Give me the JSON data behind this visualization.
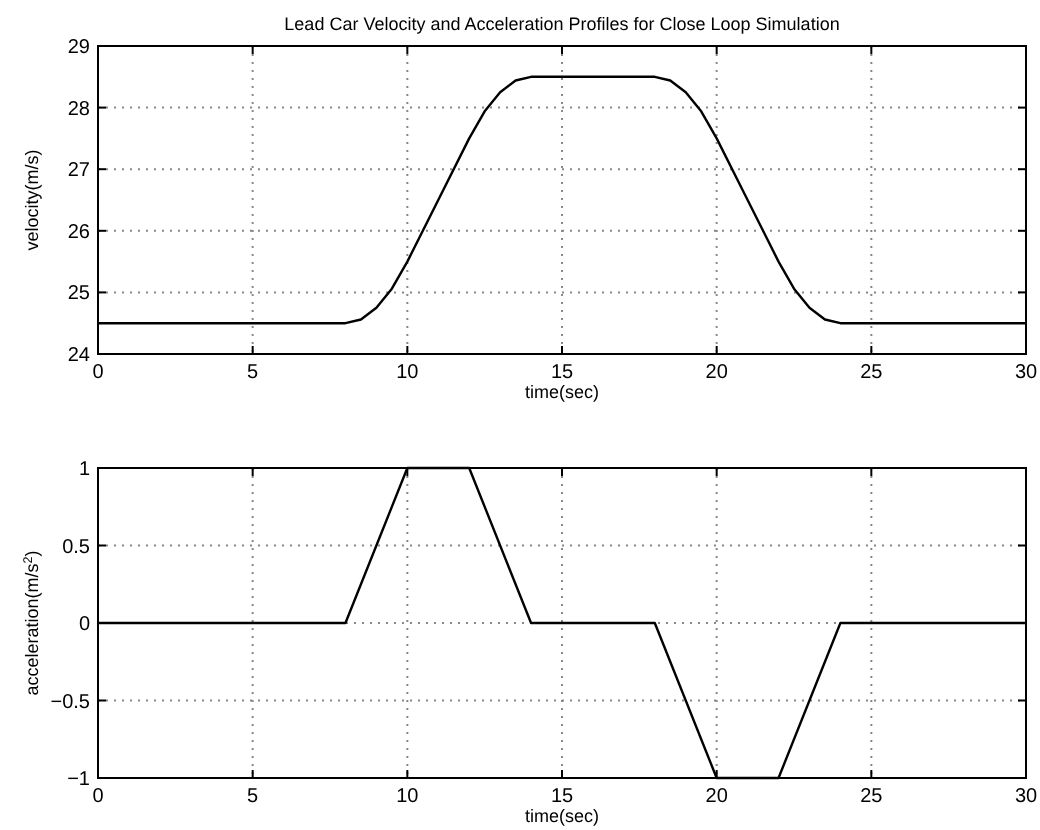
{
  "chart_data": [
    {
      "type": "line",
      "title": "Lead Car Velocity and Acceleration Profiles for Close Loop Simulation",
      "xlabel": "time(sec)",
      "ylabel": "velocity(m/s)",
      "x": [
        0,
        8,
        8.5,
        9,
        9.5,
        10,
        11,
        12,
        12.5,
        13,
        13.5,
        14,
        18,
        18.5,
        19,
        19.5,
        20,
        21,
        22,
        22.5,
        23,
        23.5,
        24,
        30
      ],
      "series": [
        {
          "color": "#000000",
          "values": [
            24.5,
            24.5,
            24.56,
            24.75,
            25.06,
            25.5,
            26.5,
            27.5,
            27.94,
            28.25,
            28.44,
            28.5,
            28.5,
            28.44,
            28.25,
            27.94,
            27.5,
            26.5,
            25.5,
            25.06,
            24.75,
            24.56,
            24.5,
            24.5
          ]
        }
      ],
      "xlim": [
        0,
        30
      ],
      "xticks": [
        0,
        5,
        10,
        15,
        20,
        25,
        30
      ],
      "ylim": [
        24,
        29
      ],
      "yticks": [
        24,
        25,
        26,
        27,
        28,
        29
      ],
      "grid": true
    },
    {
      "type": "line",
      "xlabel": "time(sec)",
      "ylabel": "acceleration(m/s$^{2}$)",
      "x": [
        0,
        8,
        10,
        12,
        14,
        18,
        20,
        22,
        24,
        30
      ],
      "series": [
        {
          "color": "#000000",
          "values": [
            0,
            0,
            1,
            1,
            0,
            0,
            -1,
            -1,
            0,
            0
          ]
        }
      ],
      "xlim": [
        0,
        30
      ],
      "xticks": [
        0,
        5,
        10,
        15,
        20,
        25,
        30
      ],
      "ylim": [
        -1,
        1
      ],
      "yticks": [
        -1,
        -0.5,
        0,
        0.5,
        1
      ],
      "grid": true
    }
  ]
}
